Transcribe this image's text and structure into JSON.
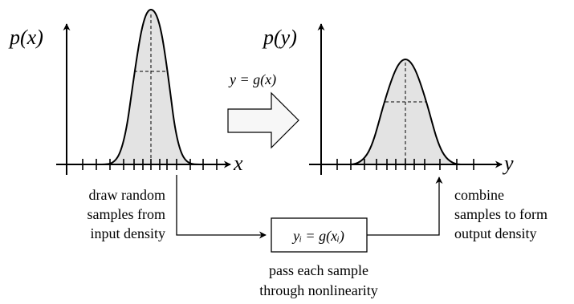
{
  "left_plot": {
    "ylabel": "p(x)",
    "xlabel": "x"
  },
  "right_plot": {
    "ylabel": "p(y)",
    "xlabel": "y"
  },
  "transform_label": "y = g(x)",
  "box_label": "yᵢ = g(xᵢ)",
  "captions": {
    "left": [
      "draw random",
      "samples from",
      "input density"
    ],
    "right": [
      "combine",
      "samples to form",
      "output density"
    ],
    "bottom": [
      "pass each sample",
      "through nonlinearity"
    ]
  },
  "colors": {
    "fill": "#e3e3e3",
    "stroke": "#000000",
    "arrow_fill": "#f7f7f7"
  }
}
